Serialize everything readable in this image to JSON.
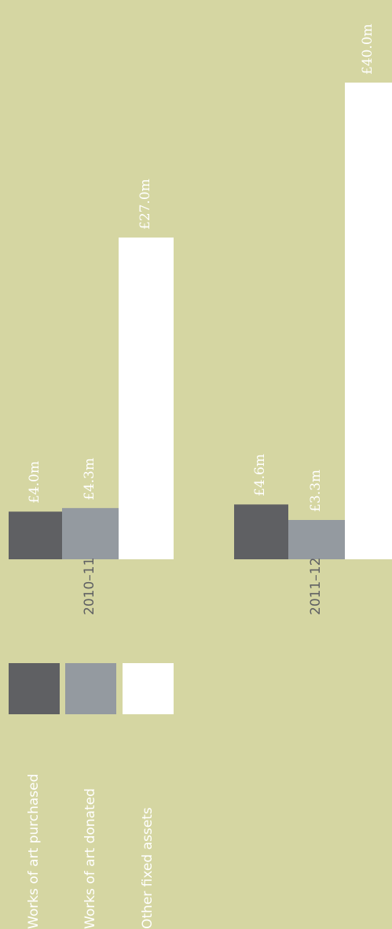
{
  "chart_data": {
    "type": "bar",
    "orientation": "vertical, rotated 90° counter-clockwise",
    "categories": [
      "2010–11",
      "2011–12"
    ],
    "series": [
      {
        "name": "Works of art purchased",
        "color": "#5f6063",
        "values": [
          4.0,
          4.6
        ],
        "value_labels": [
          "£4.0m",
          "£4.6m"
        ]
      },
      {
        "name": "Works of art donated",
        "color": "#949aa0",
        "values": [
          4.3,
          3.3
        ],
        "value_labels": [
          "£4.3m",
          "£3.3m"
        ]
      },
      {
        "name": "Other fixed assets",
        "color": "#ffffff",
        "values": [
          27.0,
          40.0
        ],
        "value_labels": [
          "£27.0m",
          "£40.0m"
        ]
      }
    ],
    "title": "",
    "xlabel": "",
    "ylabel": "",
    "ylim": [
      0,
      40
    ],
    "grid": false,
    "legend": "bottom-left",
    "background": "#d5d6a2"
  }
}
